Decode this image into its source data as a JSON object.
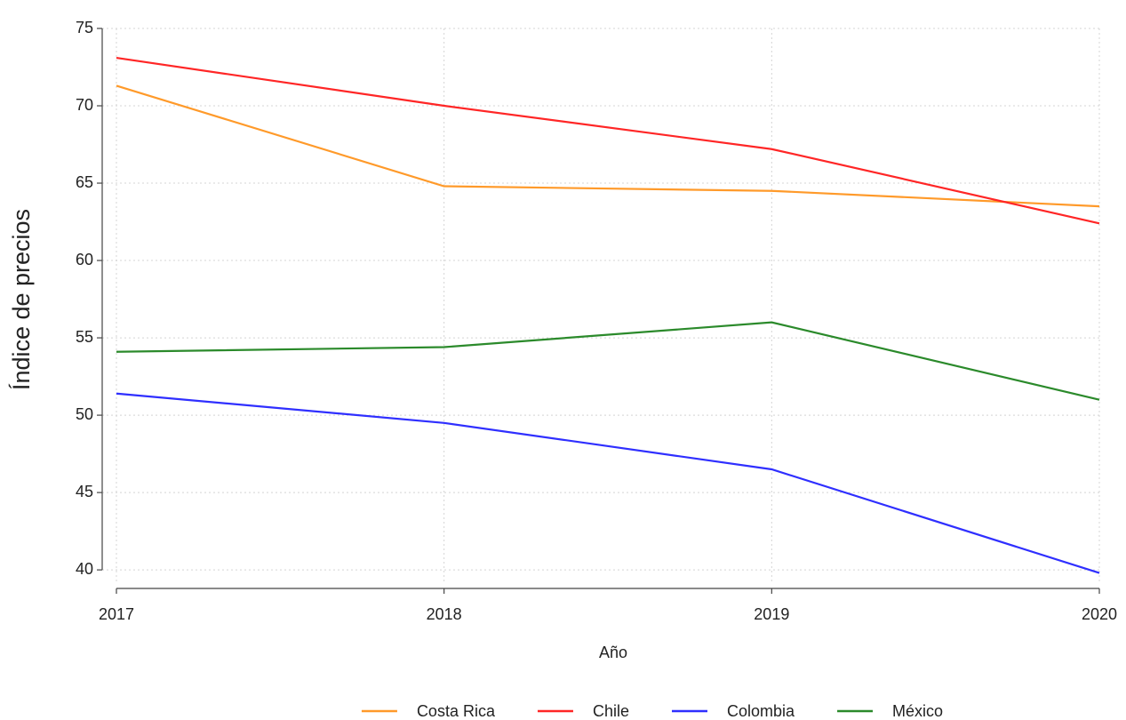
{
  "chart_data": {
    "type": "line",
    "x_label": "Año",
    "y_label": "Índice de precios",
    "x": [
      2017,
      2018,
      2019,
      2020
    ],
    "series": [
      {
        "name": "Costa Rica",
        "color": "#ff9a2a",
        "values": [
          71.3,
          64.8,
          64.5,
          63.5
        ]
      },
      {
        "name": "Chile",
        "color": "#ff2626",
        "values": [
          73.1,
          70.0,
          67.2,
          62.4
        ]
      },
      {
        "name": "Colombia",
        "color": "#2f2fff",
        "values": [
          51.4,
          49.5,
          46.5,
          39.8
        ]
      },
      {
        "name": "México",
        "color": "#2b8a2b",
        "values": [
          54.1,
          54.4,
          56.0,
          51.0
        ]
      }
    ],
    "xlim": [
      2017,
      2020
    ],
    "xticks": [
      2017,
      2018,
      2019,
      2020
    ],
    "ylim": [
      38.8,
      75
    ],
    "yticks": [
      40,
      45,
      50,
      55,
      60,
      65,
      70,
      75
    ],
    "grid": true,
    "legend": "bottom"
  }
}
